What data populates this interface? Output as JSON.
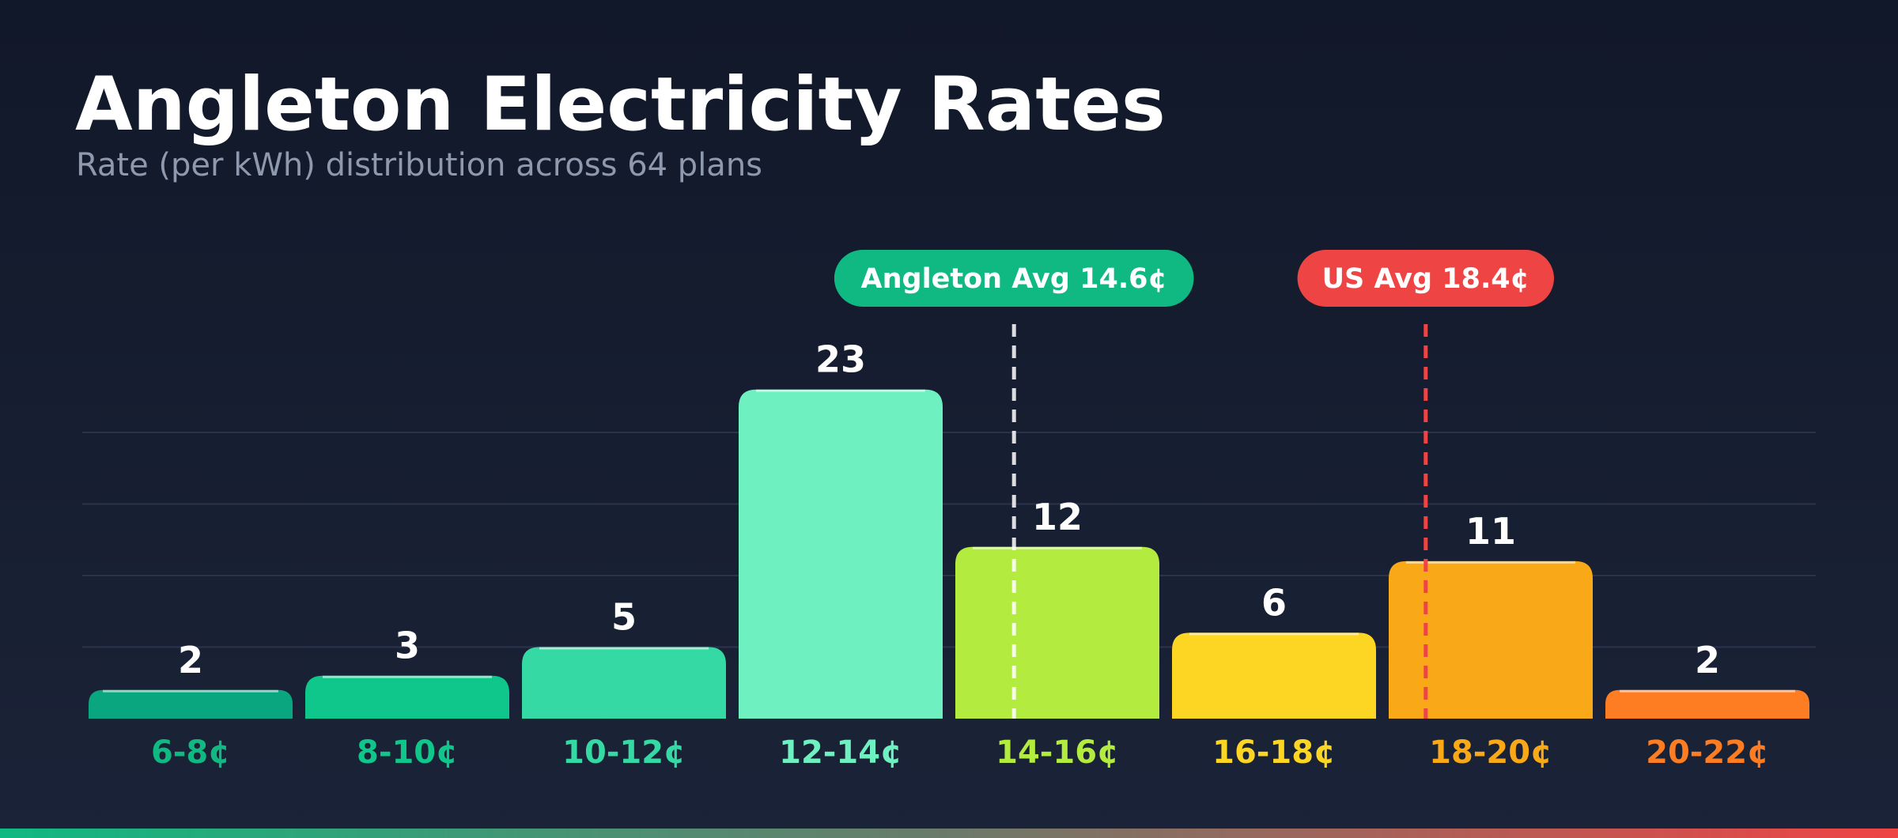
{
  "header": {
    "title": "Angleton Electricity Rates",
    "subtitle": "Rate (per kWh) distribution across 64 plans"
  },
  "colors": {
    "background_top": "#111829",
    "background_bottom": "#1b2338",
    "local_avg": "#10b981",
    "us_avg": "#ef4444",
    "bottom_bar_gradient": [
      "#10b981",
      "#ef4444"
    ]
  },
  "chart_data": {
    "type": "bar",
    "categories": [
      "6-8¢",
      "8-10¢",
      "10-12¢",
      "12-14¢",
      "14-16¢",
      "16-18¢",
      "18-20¢",
      "20-22¢"
    ],
    "values": [
      2,
      3,
      5,
      23,
      12,
      6,
      11,
      2
    ],
    "bar_colors": [
      "#0aa67f",
      "#10c78b",
      "#34d9a3",
      "#6ef0c0",
      "#b3ec3e",
      "#fdd523",
      "#f9a918",
      "#fe7d22"
    ],
    "label_colors": [
      "#10b981",
      "#10c78b",
      "#34d9a3",
      "#6ef0c0",
      "#b3ec3e",
      "#fdd523",
      "#f9a918",
      "#fe7d22"
    ],
    "ylim": [
      0,
      25
    ],
    "grid": true,
    "reference_lines": [
      {
        "label": "Angleton Avg 14.6¢",
        "value": 14.6,
        "color": "#ffffff",
        "badge_color": "#10b981"
      },
      {
        "label": "US Avg 18.4¢",
        "value": 18.4,
        "color": "#ef4444",
        "badge_color": "#ef4444"
      }
    ]
  }
}
